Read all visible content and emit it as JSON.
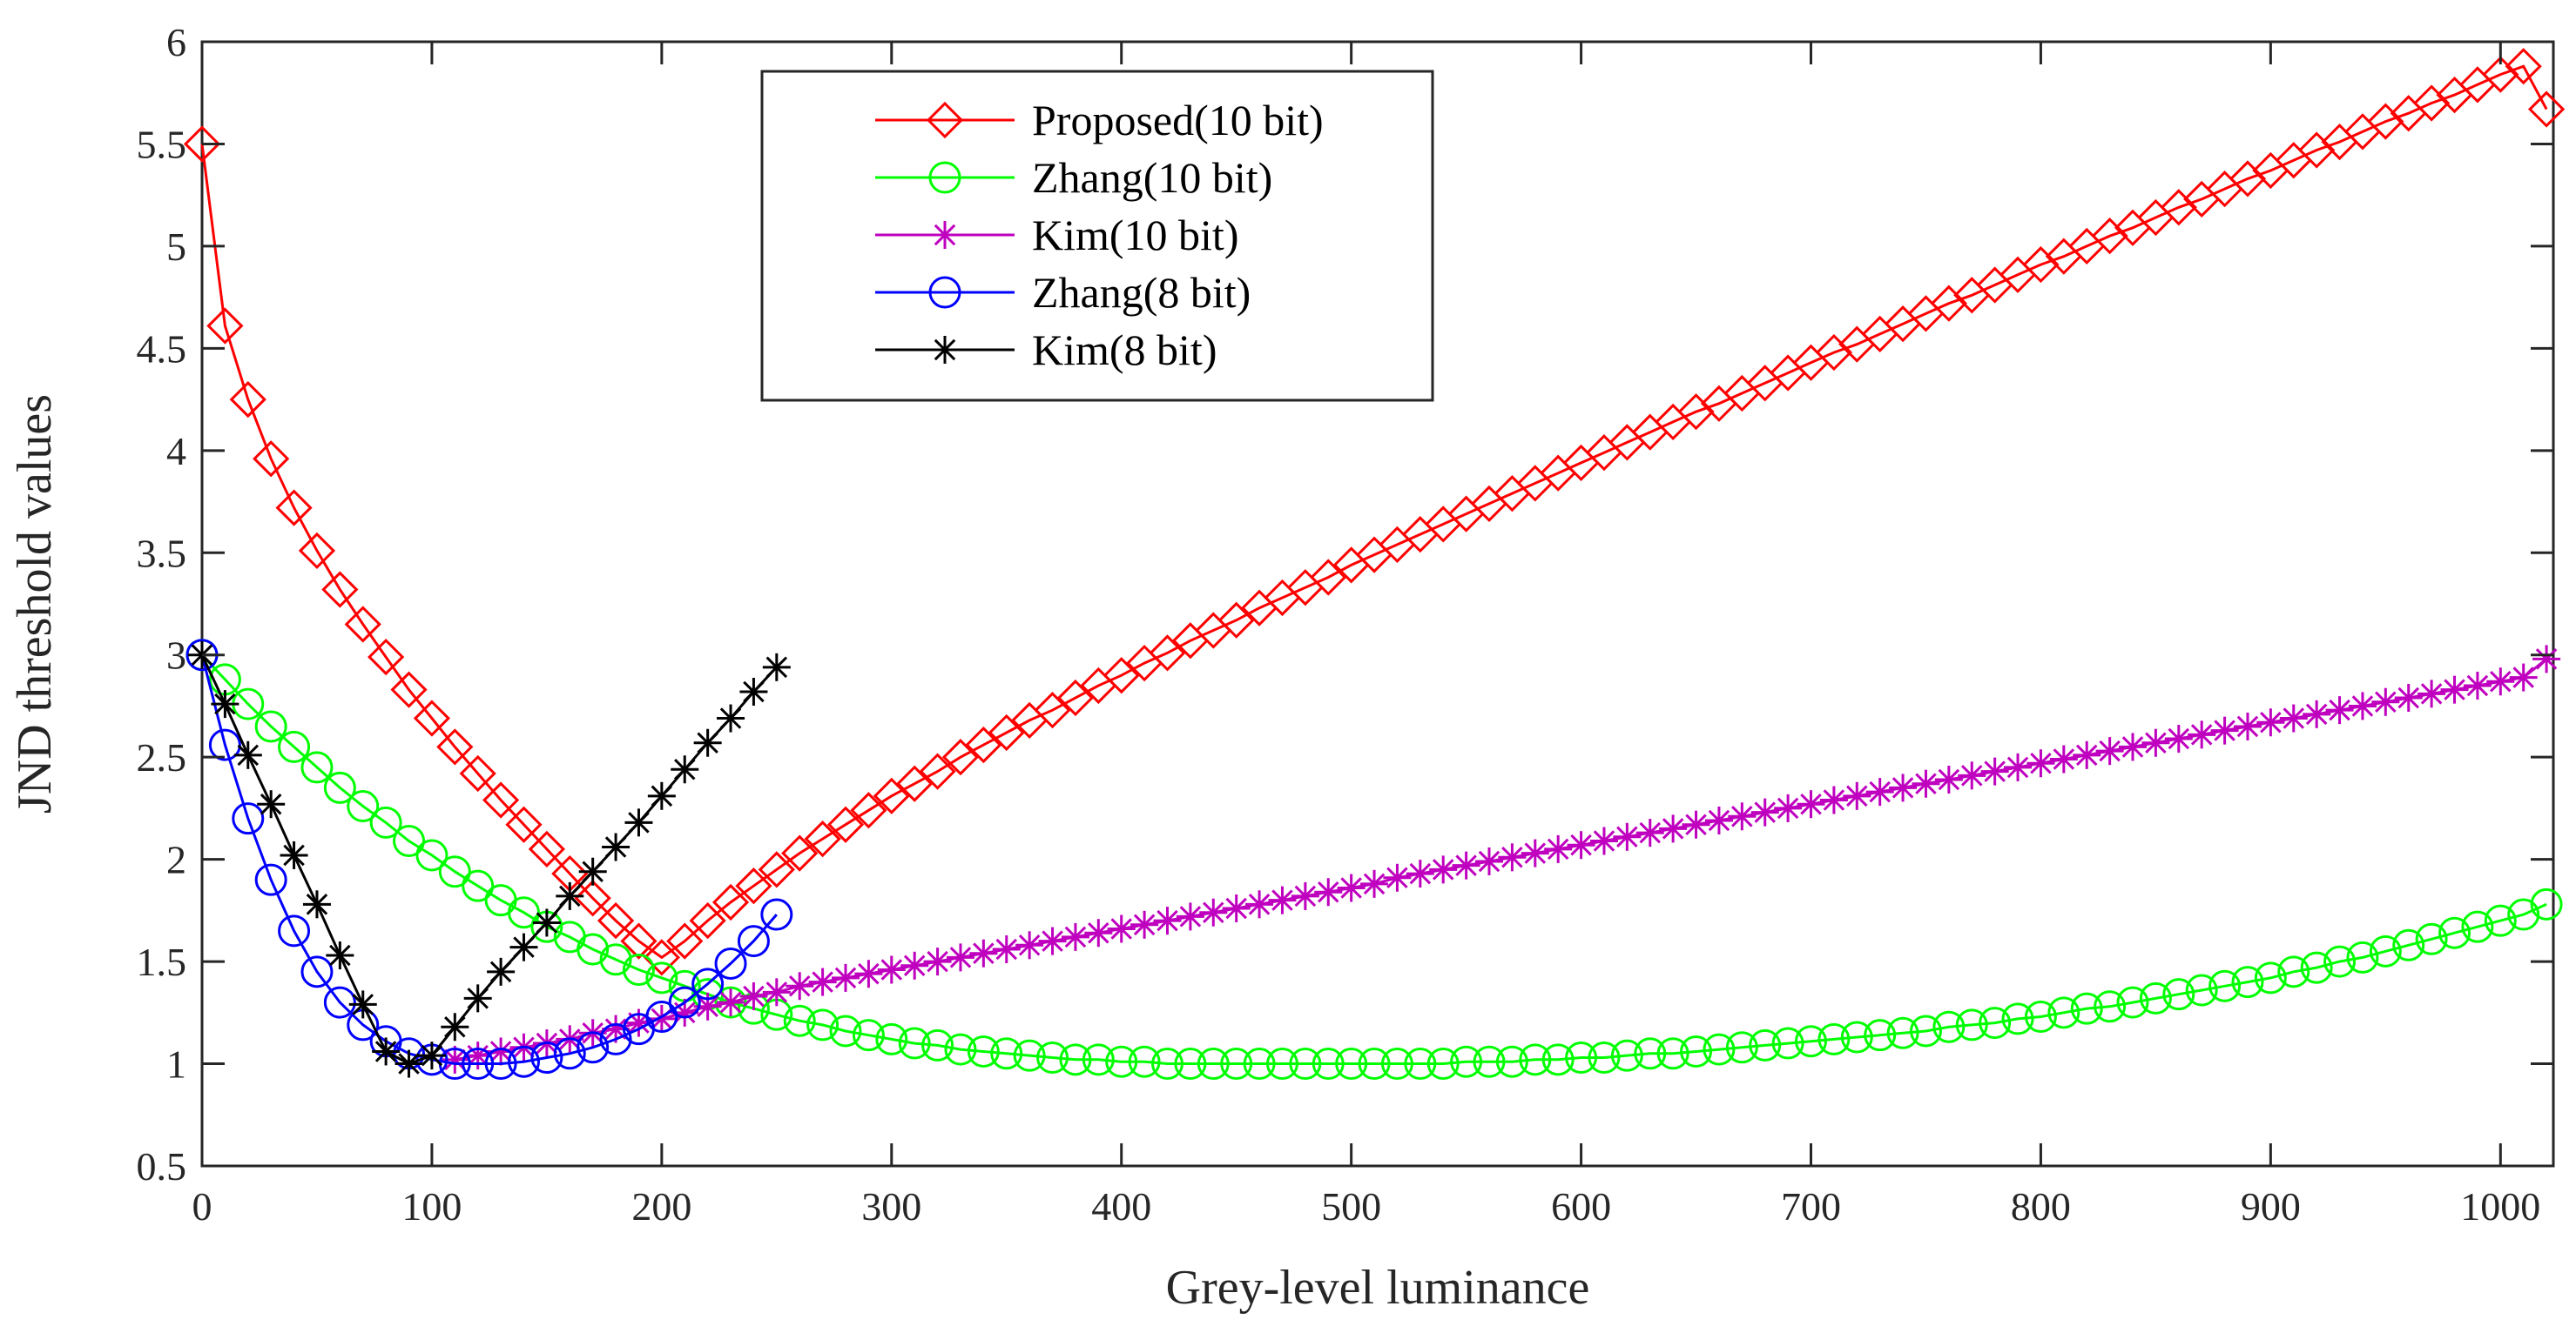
{
  "chart_data": {
    "type": "line",
    "title": "",
    "xlabel": "Grey-level luminance",
    "ylabel": "JND threshold values",
    "xlim": [
      0,
      1023
    ],
    "ylim": [
      0.5,
      6
    ],
    "xticks": [
      0,
      100,
      200,
      300,
      400,
      500,
      600,
      700,
      800,
      900,
      1000
    ],
    "yticks": [
      0.5,
      1,
      1.5,
      2,
      2.5,
      3,
      3.5,
      4,
      4.5,
      5,
      5.5,
      6
    ],
    "xtick_labels": [
      "0",
      "100",
      "200",
      "300",
      "400",
      "500",
      "600",
      "700",
      "800",
      "900",
      "1000"
    ],
    "ytick_labels": [
      "0.5",
      "1",
      "1.5",
      "2",
      "2.5",
      "3",
      "3.5",
      "4",
      "4.5",
      "5",
      "5.5",
      "6"
    ],
    "grid": false,
    "legend_position": "top-center",
    "series": [
      {
        "name": "Proposed(10 bit)",
        "color": "#ff0000",
        "marker": "diamond",
        "x": [
          0,
          10,
          20,
          30,
          40,
          50,
          60,
          70,
          80,
          90,
          100,
          110,
          120,
          130,
          140,
          150,
          160,
          170,
          180,
          190,
          200,
          210,
          220,
          230,
          240,
          250,
          260,
          270,
          280,
          290,
          300,
          310,
          320,
          330,
          340,
          350,
          360,
          370,
          380,
          390,
          400,
          410,
          420,
          430,
          440,
          450,
          460,
          470,
          480,
          490,
          500,
          510,
          520,
          530,
          540,
          550,
          560,
          570,
          580,
          590,
          600,
          610,
          620,
          630,
          640,
          650,
          660,
          670,
          680,
          690,
          700,
          710,
          720,
          730,
          740,
          750,
          760,
          770,
          780,
          790,
          800,
          810,
          820,
          830,
          840,
          850,
          860,
          870,
          880,
          890,
          900,
          910,
          920,
          930,
          940,
          950,
          960,
          970,
          980,
          990,
          1000,
          1010,
          1020
        ],
        "y": [
          5.5,
          4.61,
          4.25,
          3.96,
          3.72,
          3.51,
          3.32,
          3.15,
          2.99,
          2.83,
          2.69,
          2.55,
          2.42,
          2.29,
          2.17,
          2.05,
          1.93,
          1.81,
          1.7,
          1.6,
          1.52,
          1.6,
          1.7,
          1.79,
          1.87,
          1.95,
          2.03,
          2.1,
          2.17,
          2.24,
          2.31,
          2.37,
          2.43,
          2.5,
          2.56,
          2.62,
          2.68,
          2.73,
          2.79,
          2.85,
          2.9,
          2.96,
          3.01,
          3.07,
          3.12,
          3.17,
          3.23,
          3.28,
          3.33,
          3.38,
          3.44,
          3.49,
          3.54,
          3.59,
          3.64,
          3.69,
          3.74,
          3.79,
          3.84,
          3.89,
          3.94,
          3.99,
          4.04,
          4.09,
          4.14,
          4.19,
          4.23,
          4.28,
          4.33,
          4.38,
          4.43,
          4.48,
          4.52,
          4.57,
          4.62,
          4.67,
          4.72,
          4.76,
          4.81,
          4.86,
          4.91,
          4.95,
          5.0,
          5.05,
          5.09,
          5.14,
          5.19,
          5.23,
          5.28,
          5.33,
          5.37,
          5.42,
          5.47,
          5.51,
          5.56,
          5.61,
          5.65,
          5.7,
          5.74,
          5.79,
          5.84,
          5.88,
          5.67
        ]
      },
      {
        "name": "Zhang(10 bit)",
        "color": "#00ff00",
        "marker": "circle",
        "x": [
          0,
          10,
          20,
          30,
          40,
          50,
          60,
          70,
          80,
          90,
          100,
          110,
          120,
          130,
          140,
          150,
          160,
          170,
          180,
          190,
          200,
          210,
          220,
          230,
          240,
          250,
          260,
          270,
          280,
          290,
          300,
          310,
          320,
          330,
          340,
          350,
          360,
          370,
          380,
          390,
          400,
          410,
          420,
          430,
          440,
          450,
          460,
          470,
          480,
          490,
          500,
          510,
          520,
          530,
          540,
          550,
          560,
          570,
          580,
          590,
          600,
          610,
          620,
          630,
          640,
          650,
          660,
          670,
          680,
          690,
          700,
          710,
          720,
          730,
          740,
          750,
          760,
          770,
          780,
          790,
          800,
          810,
          820,
          830,
          840,
          850,
          860,
          870,
          880,
          890,
          900,
          910,
          920,
          930,
          940,
          950,
          960,
          970,
          980,
          990,
          1000,
          1010,
          1020
        ],
        "y": [
          3.0,
          2.88,
          2.76,
          2.65,
          2.55,
          2.45,
          2.35,
          2.26,
          2.18,
          2.09,
          2.02,
          1.94,
          1.87,
          1.8,
          1.74,
          1.67,
          1.62,
          1.56,
          1.51,
          1.46,
          1.42,
          1.38,
          1.34,
          1.3,
          1.27,
          1.24,
          1.21,
          1.19,
          1.16,
          1.14,
          1.12,
          1.1,
          1.09,
          1.07,
          1.06,
          1.05,
          1.04,
          1.03,
          1.02,
          1.02,
          1.01,
          1.01,
          1.0,
          1.0,
          1.0,
          1.0,
          1.0,
          1.0,
          1.0,
          1.0,
          1.0,
          1.0,
          1.0,
          1.0,
          1.0,
          1.01,
          1.01,
          1.01,
          1.02,
          1.02,
          1.03,
          1.03,
          1.04,
          1.05,
          1.05,
          1.06,
          1.07,
          1.08,
          1.09,
          1.1,
          1.11,
          1.12,
          1.13,
          1.14,
          1.15,
          1.16,
          1.18,
          1.19,
          1.2,
          1.22,
          1.23,
          1.25,
          1.27,
          1.28,
          1.3,
          1.32,
          1.34,
          1.36,
          1.38,
          1.4,
          1.42,
          1.45,
          1.47,
          1.5,
          1.52,
          1.55,
          1.58,
          1.61,
          1.64,
          1.67,
          1.7,
          1.73,
          1.78
        ]
      },
      {
        "name": "Kim(10 bit)",
        "color": "#bf00bf",
        "marker": "star",
        "x": [
          110,
          120,
          130,
          140,
          150,
          160,
          170,
          180,
          190,
          200,
          210,
          220,
          230,
          240,
          250,
          260,
          270,
          280,
          290,
          300,
          310,
          320,
          330,
          340,
          350,
          360,
          370,
          380,
          390,
          400,
          410,
          420,
          430,
          440,
          450,
          460,
          470,
          480,
          490,
          500,
          510,
          520,
          530,
          540,
          550,
          560,
          570,
          580,
          590,
          600,
          610,
          620,
          630,
          640,
          650,
          660,
          670,
          680,
          690,
          700,
          710,
          720,
          730,
          740,
          750,
          760,
          770,
          780,
          790,
          800,
          810,
          820,
          830,
          840,
          850,
          860,
          870,
          880,
          890,
          900,
          910,
          920,
          930,
          940,
          950,
          960,
          970,
          980,
          990,
          1000,
          1010,
          1020
        ],
        "y": [
          1.02,
          1.04,
          1.06,
          1.08,
          1.1,
          1.12,
          1.15,
          1.17,
          1.2,
          1.22,
          1.25,
          1.28,
          1.3,
          1.33,
          1.35,
          1.38,
          1.4,
          1.42,
          1.44,
          1.46,
          1.48,
          1.5,
          1.52,
          1.54,
          1.56,
          1.58,
          1.6,
          1.62,
          1.64,
          1.66,
          1.68,
          1.7,
          1.72,
          1.74,
          1.76,
          1.78,
          1.8,
          1.82,
          1.84,
          1.86,
          1.88,
          1.91,
          1.93,
          1.95,
          1.97,
          1.99,
          2.01,
          2.03,
          2.05,
          2.07,
          2.09,
          2.11,
          2.13,
          2.15,
          2.17,
          2.19,
          2.21,
          2.23,
          2.25,
          2.27,
          2.29,
          2.31,
          2.33,
          2.35,
          2.37,
          2.39,
          2.41,
          2.43,
          2.45,
          2.47,
          2.49,
          2.51,
          2.53,
          2.55,
          2.57,
          2.59,
          2.61,
          2.63,
          2.65,
          2.67,
          2.69,
          2.71,
          2.73,
          2.75,
          2.77,
          2.79,
          2.81,
          2.83,
          2.85,
          2.87,
          2.89,
          2.98
        ]
      },
      {
        "name": "Zhang(8 bit)",
        "color": "#0000ff",
        "marker": "circle",
        "x": [
          0,
          10,
          20,
          30,
          40,
          50,
          60,
          70,
          80,
          90,
          100,
          110,
          120,
          130,
          140,
          150,
          160,
          170,
          180,
          190,
          200,
          210,
          220,
          230,
          240,
          250
        ],
        "y": [
          3.0,
          2.56,
          2.2,
          1.9,
          1.65,
          1.45,
          1.3,
          1.19,
          1.11,
          1.05,
          1.02,
          1.0,
          1.0,
          1.0,
          1.01,
          1.03,
          1.05,
          1.08,
          1.12,
          1.17,
          1.23,
          1.3,
          1.39,
          1.49,
          1.6,
          1.73
        ]
      },
      {
        "name": "Kim(8 bit)",
        "color": "#000000",
        "marker": "star",
        "x": [
          0,
          10,
          20,
          30,
          40,
          50,
          60,
          70,
          80,
          90,
          100,
          110,
          120,
          130,
          140,
          150,
          160,
          170,
          180,
          190,
          200,
          210,
          220,
          230,
          240,
          250
        ],
        "y": [
          3.0,
          2.76,
          2.51,
          2.27,
          2.02,
          1.78,
          1.53,
          1.29,
          1.06,
          1.0,
          1.04,
          1.18,
          1.32,
          1.45,
          1.57,
          1.69,
          1.82,
          1.94,
          2.06,
          2.18,
          2.31,
          2.44,
          2.57,
          2.69,
          2.82,
          2.94
        ]
      }
    ]
  }
}
